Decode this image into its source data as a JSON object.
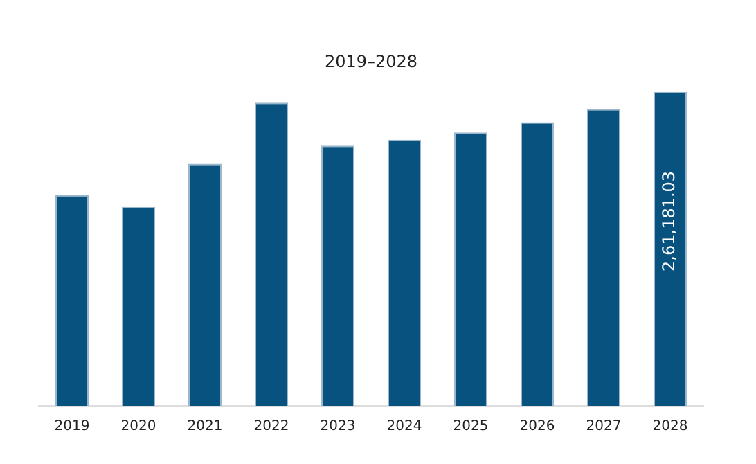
{
  "chart_data": {
    "type": "bar",
    "title": "2019–2028",
    "categories": [
      "2019",
      "2020",
      "2021",
      "2022",
      "2023",
      "2024",
      "2025",
      "2026",
      "2027",
      "2028"
    ],
    "values": [
      175400,
      165600,
      201400,
      252300,
      216500,
      221400,
      227500,
      236000,
      247000,
      261181.03
    ],
    "value_labels": [
      null,
      null,
      null,
      null,
      null,
      null,
      null,
      null,
      null,
      "2,61,181.03"
    ],
    "color": "#08527f",
    "grid": false,
    "legend": false
  }
}
